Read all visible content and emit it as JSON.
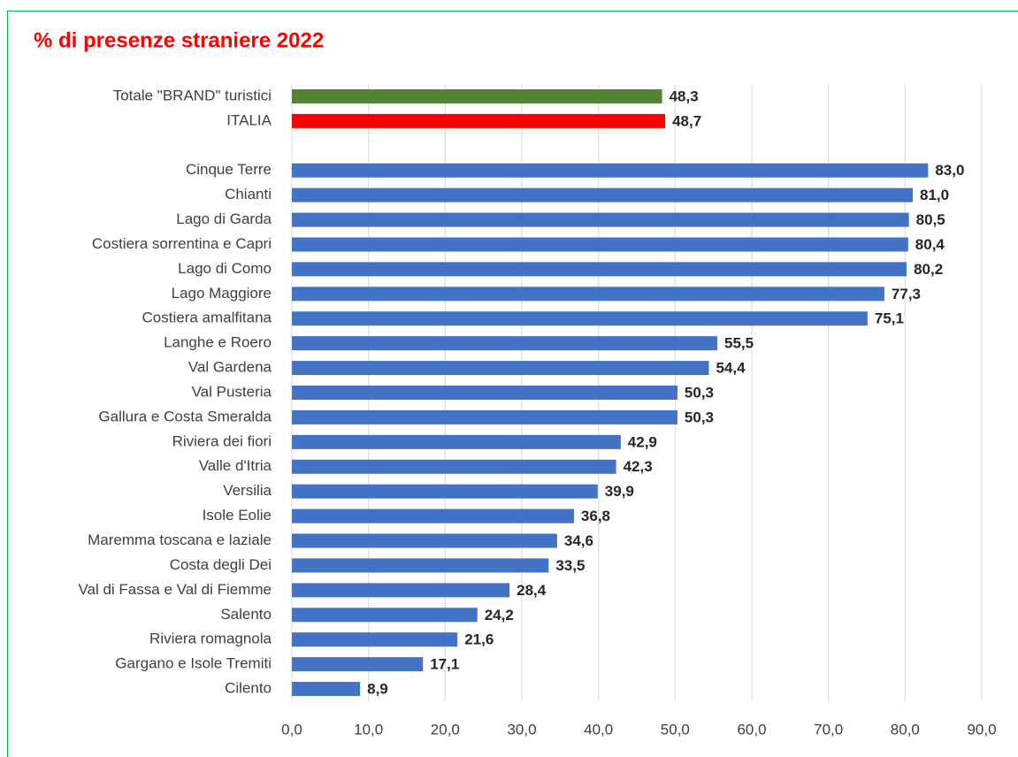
{
  "chart_data": {
    "type": "barh",
    "title": "% di presenze straniere 2022",
    "categories": [
      "Totale \"BRAND\" turistici",
      "ITALIA",
      null,
      "Cinque Terre",
      "Chianti",
      "Lago di Garda",
      "Costiera sorrentina e Capri",
      "Lago di Como",
      "Lago Maggiore",
      "Costiera amalfitana",
      "Langhe e Roero",
      "Val Gardena",
      "Val Pusteria",
      "Gallura e Costa Smeralda",
      "Riviera dei fiori",
      "Valle d'Itria",
      "Versilia",
      "Isole Eolie",
      "Maremma toscana e laziale",
      "Costa degli Dei",
      "Val di Fassa e Val di Fiemme",
      "Salento",
      "Riviera romagnola",
      "Gargano e Isole Tremiti",
      "Cilento"
    ],
    "values": [
      48.3,
      48.7,
      null,
      83.0,
      81.0,
      80.5,
      80.4,
      80.2,
      77.3,
      75.1,
      55.5,
      54.4,
      50.3,
      50.3,
      42.9,
      42.3,
      39.9,
      36.8,
      34.6,
      33.5,
      28.4,
      24.2,
      21.6,
      17.1,
      8.9
    ],
    "value_labels": [
      "48,3",
      "48,7",
      null,
      "83,0",
      "81,0",
      "80,5",
      "80,4",
      "80,2",
      "77,3",
      "75,1",
      "55,5",
      "54,4",
      "50,3",
      "50,3",
      "42,9",
      "42,3",
      "39,9",
      "36,8",
      "34,6",
      "33,5",
      "28,4",
      "24,2",
      "21,6",
      "17,1",
      "8,9"
    ],
    "colors": [
      "#548235",
      "#ff0000",
      null,
      "#4472c4",
      "#4472c4",
      "#4472c4",
      "#4472c4",
      "#4472c4",
      "#4472c4",
      "#4472c4",
      "#4472c4",
      "#4472c4",
      "#4472c4",
      "#4472c4",
      "#4472c4",
      "#4472c4",
      "#4472c4",
      "#4472c4",
      "#4472c4",
      "#4472c4",
      "#4472c4",
      "#4472c4",
      "#4472c4",
      "#4472c4",
      "#4472c4"
    ],
    "xlim": [
      0,
      90
    ],
    "xticks": [
      {
        "value": 0,
        "label": "0,0"
      },
      {
        "value": 10,
        "label": "10,0"
      },
      {
        "value": 20,
        "label": "20,0"
      },
      {
        "value": 30,
        "label": "30,0"
      },
      {
        "value": 40,
        "label": "40,0"
      },
      {
        "value": 50,
        "label": "50,0"
      },
      {
        "value": 60,
        "label": "60,0"
      },
      {
        "value": 70,
        "label": "70,0"
      },
      {
        "value": 80,
        "label": "80,0"
      },
      {
        "value": 90,
        "label": "90,0"
      }
    ],
    "grid": true
  }
}
